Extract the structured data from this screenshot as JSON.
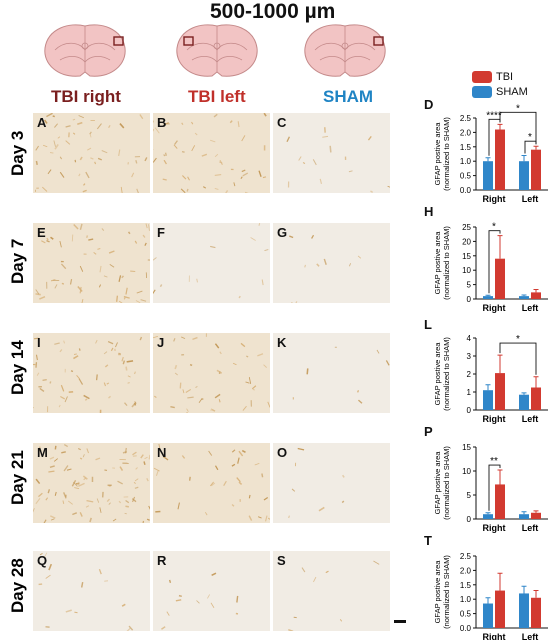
{
  "figure": {
    "title": "500-1000 µm",
    "groups": [
      {
        "label": "TBI right",
        "color": "#7a1f1f"
      },
      {
        "label": "TBI left",
        "color": "#c0302a"
      },
      {
        "label": "SHAM",
        "color": "#1f84c4"
      }
    ],
    "days": [
      "Day 3",
      "Day 7",
      "Day 14",
      "Day 21",
      "Day 28"
    ],
    "panel_letters": [
      [
        "A",
        "B",
        "C"
      ],
      [
        "E",
        "F",
        "G"
      ],
      [
        "I",
        "J",
        "K"
      ],
      [
        "M",
        "N",
        "O"
      ],
      [
        "Q",
        "R",
        "S"
      ]
    ],
    "chart_letters": [
      "D",
      "H",
      "L",
      "P",
      "T"
    ],
    "legend": [
      {
        "label": "TBI",
        "color": "#d23a30"
      },
      {
        "label": "SHAM",
        "color": "#2f86c9"
      }
    ]
  },
  "chart_data": [
    {
      "type": "bar",
      "categories": [
        "Right",
        "Left"
      ],
      "series": [
        {
          "name": "SHAM",
          "values": [
            1.0,
            1.0
          ],
          "err": [
            0.12,
            0.2
          ]
        },
        {
          "name": "TBI",
          "values": [
            2.1,
            1.4
          ],
          "err": [
            0.18,
            0.12
          ]
        }
      ],
      "ylabel": "GFAP postive area (normalized to SHAM)",
      "ylim": [
        0,
        2.5
      ],
      "yticks": [
        "0.0",
        "0.5",
        "1.0",
        "1.5",
        "2.0",
        "2.5"
      ],
      "sig": [
        {
          "type": "within",
          "cat": 0,
          "label": "****"
        },
        {
          "type": "within",
          "cat": 1,
          "label": "*"
        },
        {
          "type": "across",
          "label": "*"
        }
      ]
    },
    {
      "type": "bar",
      "categories": [
        "Right",
        "Left"
      ],
      "series": [
        {
          "name": "SHAM",
          "values": [
            1.0,
            1.0
          ],
          "err": [
            0.3,
            0.4
          ]
        },
        {
          "name": "TBI",
          "values": [
            14.0,
            2.3
          ],
          "err": [
            8.0,
            1.0
          ]
        }
      ],
      "ylabel": "GFAP postive area (normalized to SHAM)",
      "ylim": [
        0,
        25
      ],
      "yticks": [
        "0",
        "5",
        "10",
        "15",
        "20",
        "25"
      ],
      "sig": [
        {
          "type": "within",
          "cat": 0,
          "label": "*"
        }
      ]
    },
    {
      "type": "bar",
      "categories": [
        "Right",
        "Left"
      ],
      "series": [
        {
          "name": "SHAM",
          "values": [
            1.1,
            0.85
          ],
          "err": [
            0.3,
            0.1
          ]
        },
        {
          "name": "TBI",
          "values": [
            2.05,
            1.25
          ],
          "err": [
            1.0,
            0.6
          ]
        }
      ],
      "ylabel": "GFAP postive area (normalized to SHAM)",
      "ylim": [
        0,
        4
      ],
      "yticks": [
        "0",
        "1",
        "2",
        "3",
        "4"
      ],
      "sig": [
        {
          "type": "across",
          "label": "*"
        }
      ]
    },
    {
      "type": "bar",
      "categories": [
        "Right",
        "Left"
      ],
      "series": [
        {
          "name": "SHAM",
          "values": [
            1.0,
            1.0
          ],
          "err": [
            0.3,
            0.5
          ]
        },
        {
          "name": "TBI",
          "values": [
            7.2,
            1.3
          ],
          "err": [
            3.0,
            0.4
          ]
        }
      ],
      "ylabel": "GFAP postive area (normalized to SHAM)",
      "ylim": [
        0,
        15
      ],
      "yticks": [
        "0",
        "5",
        "10",
        "15"
      ],
      "sig": [
        {
          "type": "within",
          "cat": 0,
          "label": "**"
        }
      ]
    },
    {
      "type": "bar",
      "categories": [
        "Right",
        "Left"
      ],
      "series": [
        {
          "name": "SHAM",
          "values": [
            0.85,
            1.2
          ],
          "err": [
            0.2,
            0.25
          ]
        },
        {
          "name": "TBI",
          "values": [
            1.3,
            1.05
          ],
          "err": [
            0.6,
            0.25
          ]
        }
      ],
      "ylabel": "GFAP postive area (normalized to SHAM)",
      "ylim": [
        0,
        2.5
      ],
      "yticks": [
        "0.0",
        "0.5",
        "1.0",
        "1.5",
        "2.0",
        "2.5"
      ],
      "sig": []
    }
  ]
}
